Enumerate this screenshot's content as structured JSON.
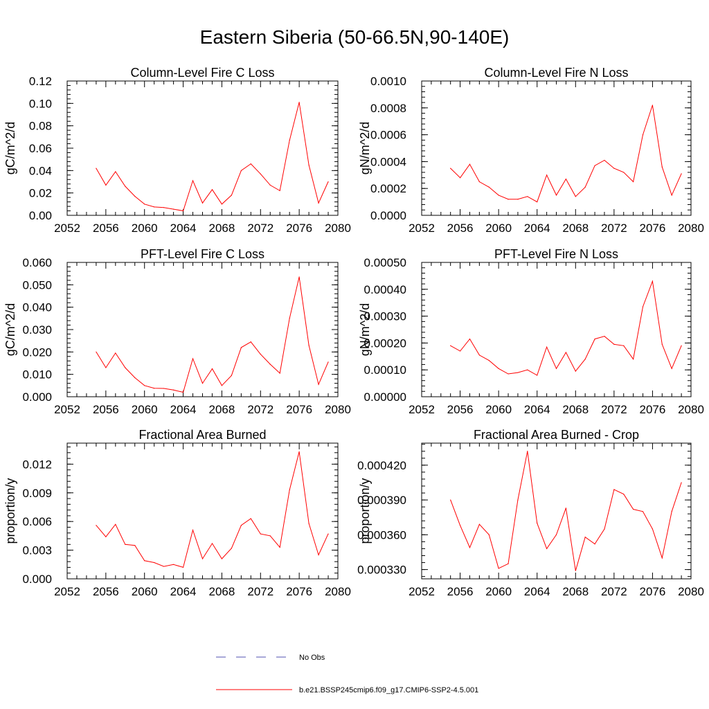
{
  "page": {
    "title": "Eastern Siberia (50-66.5N,90-140E)"
  },
  "colors": {
    "model_line": "#ff0000",
    "obs_line": "#5050b0",
    "axis": "#000000"
  },
  "legend": {
    "placement": "bottom-center",
    "entries": [
      {
        "label": "No Obs",
        "style": "dashed",
        "color": "#5050b0"
      },
      {
        "label": "b.e21.BSSP245cmip6.f09_g17.CMIP6-SSP2-4.5.001",
        "style": "solid",
        "color": "#ff0000"
      }
    ]
  },
  "chart_data": [
    {
      "type": "line",
      "title": "Column-Level Fire C Loss",
      "ylabel": "gC/m^2/d",
      "xlim": [
        2052,
        2080
      ],
      "ylim": [
        0,
        0.12
      ],
      "xticks": [
        2052,
        2056,
        2060,
        2064,
        2068,
        2072,
        2076,
        2080
      ],
      "yticks": [
        0,
        0.02,
        0.04,
        0.06,
        0.08,
        0.1,
        0.12
      ],
      "ytick_labels": [
        "0.00",
        "0.02",
        "0.04",
        "0.06",
        "0.08",
        "0.10",
        "0.12"
      ],
      "x": [
        2055,
        2056,
        2057,
        2058,
        2059,
        2060,
        2061,
        2062,
        2063,
        2064,
        2065,
        2066,
        2067,
        2068,
        2069,
        2070,
        2071,
        2072,
        2073,
        2074,
        2075,
        2076,
        2077,
        2078,
        2079
      ],
      "series": [
        {
          "values": [
            0.042,
            0.027,
            0.039,
            0.026,
            0.017,
            0.01,
            0.0075,
            0.007,
            0.0055,
            0.004,
            0.031,
            0.011,
            0.023,
            0.01,
            0.018,
            0.04,
            0.046,
            0.037,
            0.027,
            0.022,
            0.067,
            0.101,
            0.045,
            0.011,
            0.03
          ]
        }
      ]
    },
    {
      "type": "line",
      "title": "Column-Level Fire N Loss",
      "ylabel": "gN/m^2/d",
      "xlim": [
        2052,
        2080
      ],
      "ylim": [
        0,
        0.001
      ],
      "xticks": [
        2052,
        2056,
        2060,
        2064,
        2068,
        2072,
        2076,
        2080
      ],
      "yticks": [
        0,
        0.0002,
        0.0004,
        0.0006,
        0.0008,
        0.001
      ],
      "ytick_labels": [
        "0.0000",
        "0.0002",
        "0.0004",
        "0.0006",
        "0.0008",
        "0.0010"
      ],
      "x": [
        2055,
        2056,
        2057,
        2058,
        2059,
        2060,
        2061,
        2062,
        2063,
        2064,
        2065,
        2066,
        2067,
        2068,
        2069,
        2070,
        2071,
        2072,
        2073,
        2074,
        2075,
        2076,
        2077,
        2078,
        2079
      ],
      "series": [
        {
          "values": [
            0.00035,
            0.00028,
            0.00038,
            0.00025,
            0.00021,
            0.00015,
            0.00012,
            0.00012,
            0.00014,
            0.0001,
            0.0003,
            0.00015,
            0.00027,
            0.00014,
            0.00021,
            0.00037,
            0.00041,
            0.00035,
            0.00032,
            0.00025,
            0.0006,
            0.00082,
            0.00036,
            0.00015,
            0.00031
          ]
        }
      ]
    },
    {
      "type": "line",
      "title": "PFT-Level Fire C Loss",
      "ylabel": "gC/m^2/d",
      "xlim": [
        2052,
        2080
      ],
      "ylim": [
        0,
        0.06
      ],
      "xticks": [
        2052,
        2056,
        2060,
        2064,
        2068,
        2072,
        2076,
        2080
      ],
      "yticks": [
        0,
        0.01,
        0.02,
        0.03,
        0.04,
        0.05,
        0.06
      ],
      "ytick_labels": [
        "0.000",
        "0.010",
        "0.020",
        "0.030",
        "0.040",
        "0.050",
        "0.060"
      ],
      "x": [
        2055,
        2056,
        2057,
        2058,
        2059,
        2060,
        2061,
        2062,
        2063,
        2064,
        2065,
        2066,
        2067,
        2068,
        2069,
        2070,
        2071,
        2072,
        2073,
        2074,
        2075,
        2076,
        2077,
        2078,
        2079
      ],
      "series": [
        {
          "values": [
            0.02,
            0.013,
            0.0195,
            0.013,
            0.0085,
            0.005,
            0.0038,
            0.0037,
            0.003,
            0.002,
            0.017,
            0.006,
            0.0125,
            0.005,
            0.0095,
            0.022,
            0.0245,
            0.019,
            0.0145,
            0.0105,
            0.035,
            0.0535,
            0.023,
            0.0055,
            0.0155
          ]
        }
      ]
    },
    {
      "type": "line",
      "title": "PFT-Level Fire N Loss",
      "ylabel": "gN/m^2/d",
      "xlim": [
        2052,
        2080
      ],
      "ylim": [
        0,
        0.0005
      ],
      "xticks": [
        2052,
        2056,
        2060,
        2064,
        2068,
        2072,
        2076,
        2080
      ],
      "yticks": [
        0,
        0.0001,
        0.0002,
        0.0003,
        0.0004,
        0.0005
      ],
      "ytick_labels": [
        "0.00000",
        "0.00010",
        "0.00020",
        "0.00030",
        "0.00040",
        "0.00050"
      ],
      "x": [
        2055,
        2056,
        2057,
        2058,
        2059,
        2060,
        2061,
        2062,
        2063,
        2064,
        2065,
        2066,
        2067,
        2068,
        2069,
        2070,
        2071,
        2072,
        2073,
        2074,
        2075,
        2076,
        2077,
        2078,
        2079
      ],
      "series": [
        {
          "values": [
            0.00019,
            0.00017,
            0.000215,
            0.000155,
            0.000135,
            0.000105,
            8.5e-05,
            9e-05,
            0.0001,
            8e-05,
            0.000185,
            0.000105,
            0.000165,
            9.5e-05,
            0.00014,
            0.000215,
            0.000225,
            0.000195,
            0.00019,
            0.00014,
            0.000335,
            0.00043,
            0.000195,
            0.000105,
            0.00019
          ]
        }
      ]
    },
    {
      "type": "line",
      "title": "Fractional Area Burned",
      "ylabel": "proportion/y",
      "xlim": [
        2052,
        2080
      ],
      "ylim": [
        0,
        0.0142
      ],
      "xticks": [
        2052,
        2056,
        2060,
        2064,
        2068,
        2072,
        2076,
        2080
      ],
      "yticks": [
        0,
        0.003,
        0.006,
        0.009,
        0.012
      ],
      "ytick_labels": [
        "0.000",
        "0.003",
        "0.006",
        "0.009",
        "0.012"
      ],
      "x": [
        2055,
        2056,
        2057,
        2058,
        2059,
        2060,
        2061,
        2062,
        2063,
        2064,
        2065,
        2066,
        2067,
        2068,
        2069,
        2070,
        2071,
        2072,
        2073,
        2074,
        2075,
        2076,
        2077,
        2078,
        2079
      ],
      "series": [
        {
          "values": [
            0.0056,
            0.0044,
            0.0057,
            0.0036,
            0.0035,
            0.0019,
            0.0017,
            0.0013,
            0.0015,
            0.0012,
            0.0051,
            0.0021,
            0.0037,
            0.0021,
            0.0032,
            0.0056,
            0.0063,
            0.0047,
            0.0045,
            0.0033,
            0.0093,
            0.0133,
            0.0058,
            0.0025,
            0.0047
          ]
        }
      ]
    },
    {
      "type": "line",
      "title": "Fractional Area Burned - Crop",
      "ylabel": "proportion/y",
      "xlim": [
        2052,
        2080
      ],
      "ylim": [
        0.000322,
        0.000439
      ],
      "xticks": [
        2052,
        2056,
        2060,
        2064,
        2068,
        2072,
        2076,
        2080
      ],
      "yticks": [
        0.00033,
        0.00036,
        0.00039,
        0.00042
      ],
      "ytick_labels": [
        "0.000330",
        "0.000360",
        "0.000390",
        "0.000420"
      ],
      "x": [
        2055,
        2056,
        2057,
        2058,
        2059,
        2060,
        2061,
        2062,
        2063,
        2064,
        2065,
        2066,
        2067,
        2068,
        2069,
        2070,
        2071,
        2072,
        2073,
        2074,
        2075,
        2076,
        2077,
        2078,
        2079
      ],
      "series": [
        {
          "values": [
            0.00039,
            0.000368,
            0.000349,
            0.000369,
            0.00036,
            0.000331,
            0.000335,
            0.00039,
            0.000432,
            0.00037,
            0.000348,
            0.00036,
            0.000383,
            0.000329,
            0.000358,
            0.000352,
            0.000365,
            0.000399,
            0.000395,
            0.000382,
            0.00038,
            0.000365,
            0.00034,
            0.00038,
            0.000405
          ]
        }
      ]
    }
  ]
}
